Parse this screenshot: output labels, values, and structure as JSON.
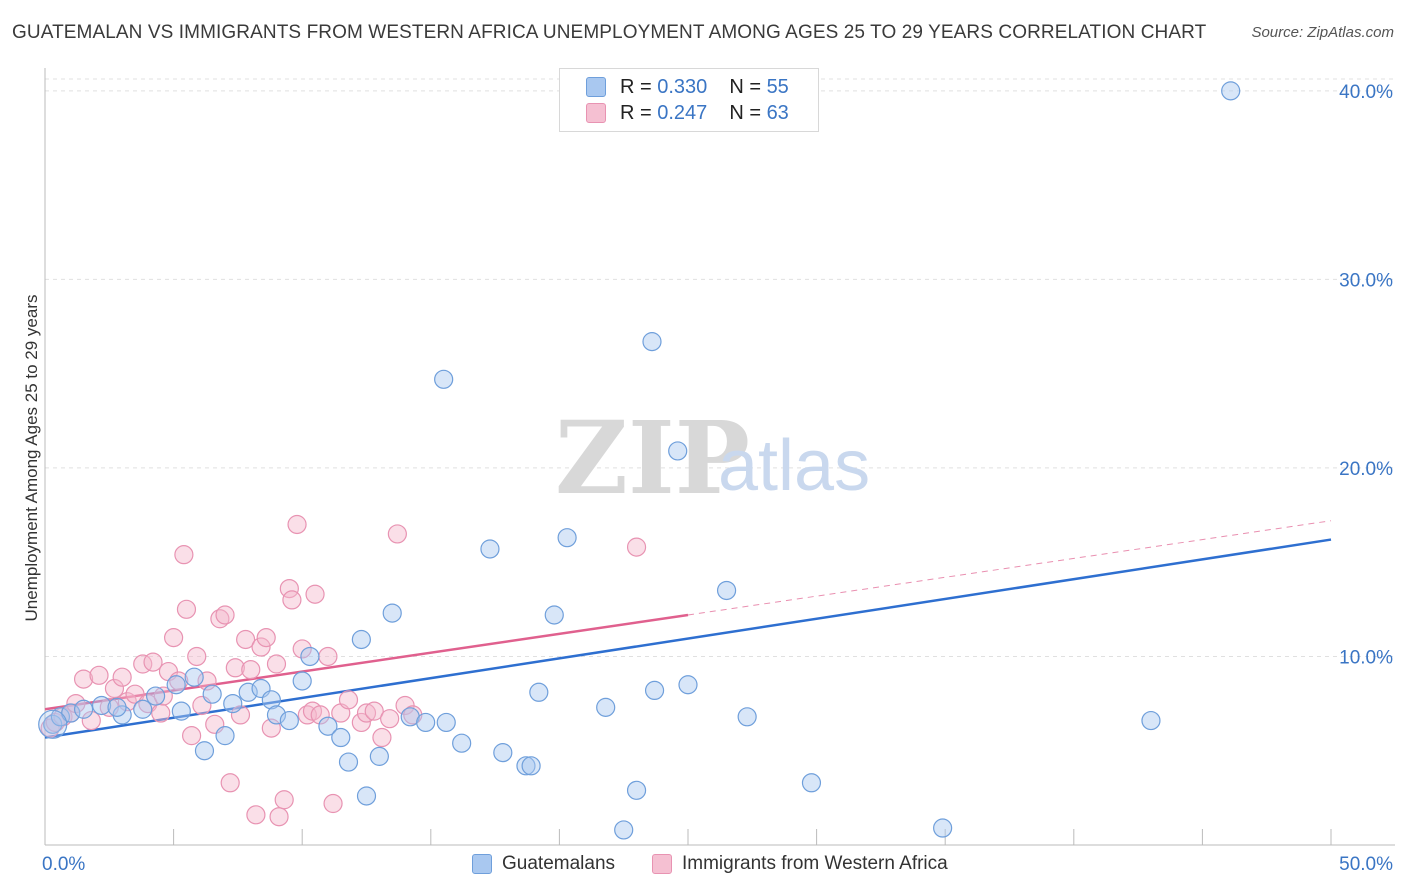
{
  "title": "GUATEMALAN VS IMMIGRANTS FROM WESTERN AFRICA UNEMPLOYMENT AMONG AGES 25 TO 29 YEARS CORRELATION CHART",
  "source": "Source: ZipAtlas.com",
  "watermark": {
    "part1": "ZIP",
    "part2": "atlas"
  },
  "legend": {
    "rows": [
      {
        "r_label": "R = ",
        "r_value": "0.330",
        "n_label": "N = ",
        "n_value": "55"
      },
      {
        "r_label": "R = ",
        "r_value": "0.247",
        "n_label": "N = ",
        "n_value": "63"
      }
    ]
  },
  "bottom_legend": [
    "Guatemalans",
    "Immigrants from Western Africa"
  ],
  "colors": {
    "blue": "#3a75c4",
    "blue_fill": "#a9c8f0",
    "blue_line": "#2e6fd0",
    "pink": "#e0709a",
    "pink_fill": "#f5b8cc",
    "pink_line": "#e0608e",
    "grid": "#e0e0e0",
    "axis_text": "#3a75c4"
  },
  "chart_data": {
    "type": "scatter",
    "title": "GUATEMALAN VS IMMIGRANTS FROM WESTERN AFRICA UNEMPLOYMENT AMONG AGES 25 TO 29 YEARS CORRELATION CHART",
    "xlabel": "",
    "ylabel": "Unemployment Among Ages 25 to 29 years",
    "xlim": [
      0,
      50
    ],
    "ylim": [
      0,
      41
    ],
    "x_tick_labels": [
      "0.0%",
      "50.0%"
    ],
    "y_ticks": [
      10,
      20,
      30,
      40
    ],
    "y_tick_labels": [
      "10.0%",
      "20.0%",
      "30.0%",
      "40.0%"
    ],
    "grid": true,
    "legend_position": "top-center",
    "series": [
      {
        "name": "Guatemalans",
        "r": 0.33,
        "n": 55,
        "trend": {
          "x": [
            0,
            50
          ],
          "y": [
            5.7,
            16.2
          ],
          "dashed_extension": false
        },
        "points": [
          [
            0.3,
            6.4
          ],
          [
            0.6,
            6.8
          ],
          [
            1.0,
            7.0
          ],
          [
            1.5,
            7.2
          ],
          [
            2.2,
            7.4
          ],
          [
            3.0,
            6.9
          ],
          [
            2.8,
            7.3
          ],
          [
            3.8,
            7.2
          ],
          [
            4.3,
            7.9
          ],
          [
            5.1,
            8.5
          ],
          [
            5.3,
            7.1
          ],
          [
            5.8,
            8.9
          ],
          [
            6.2,
            5.0
          ],
          [
            6.5,
            8.0
          ],
          [
            7.0,
            5.8
          ],
          [
            7.3,
            7.5
          ],
          [
            7.9,
            8.1
          ],
          [
            8.4,
            8.3
          ],
          [
            8.8,
            7.7
          ],
          [
            9.0,
            6.9
          ],
          [
            9.5,
            6.6
          ],
          [
            10.0,
            8.7
          ],
          [
            10.3,
            10.0
          ],
          [
            11.0,
            6.3
          ],
          [
            11.5,
            5.7
          ],
          [
            11.8,
            4.4
          ],
          [
            12.3,
            10.9
          ],
          [
            12.5,
            2.6
          ],
          [
            13.0,
            4.7
          ],
          [
            13.5,
            12.3
          ],
          [
            14.2,
            6.8
          ],
          [
            14.8,
            6.5
          ],
          [
            15.5,
            24.7
          ],
          [
            15.6,
            6.5
          ],
          [
            16.2,
            5.4
          ],
          [
            17.3,
            15.7
          ],
          [
            17.8,
            4.9
          ],
          [
            18.7,
            4.2
          ],
          [
            18.9,
            4.2
          ],
          [
            19.2,
            8.1
          ],
          [
            19.8,
            12.2
          ],
          [
            20.3,
            16.3
          ],
          [
            21.8,
            7.3
          ],
          [
            22.5,
            0.8
          ],
          [
            23.0,
            2.9
          ],
          [
            23.6,
            26.7
          ],
          [
            23.7,
            8.2
          ],
          [
            24.6,
            20.9
          ],
          [
            25.0,
            8.5
          ],
          [
            26.5,
            13.5
          ],
          [
            27.3,
            6.8
          ],
          [
            29.8,
            3.3
          ],
          [
            34.9,
            0.9
          ],
          [
            43.0,
            6.6
          ],
          [
            46.1,
            40.0
          ]
        ]
      },
      {
        "name": "Immigrants from Western Africa",
        "r": 0.247,
        "n": 63,
        "trend": {
          "x": [
            0,
            25,
            50
          ],
          "y": [
            7.2,
            12.2,
            17.2
          ],
          "solid_until_x": 25,
          "dashed_after": true
        },
        "points": [
          [
            0.2,
            6.2
          ],
          [
            0.4,
            6.5
          ],
          [
            0.7,
            6.8
          ],
          [
            1.0,
            7.0
          ],
          [
            1.2,
            7.5
          ],
          [
            1.5,
            8.8
          ],
          [
            1.8,
            6.6
          ],
          [
            2.1,
            9.0
          ],
          [
            2.5,
            7.3
          ],
          [
            2.7,
            8.3
          ],
          [
            3.0,
            8.9
          ],
          [
            3.2,
            7.6
          ],
          [
            3.5,
            8.0
          ],
          [
            3.8,
            9.6
          ],
          [
            4.0,
            7.5
          ],
          [
            4.2,
            9.7
          ],
          [
            4.5,
            7.0
          ],
          [
            4.6,
            7.9
          ],
          [
            4.8,
            9.2
          ],
          [
            5.0,
            11.0
          ],
          [
            5.2,
            8.7
          ],
          [
            5.4,
            15.4
          ],
          [
            5.5,
            12.5
          ],
          [
            5.7,
            5.8
          ],
          [
            5.9,
            10.0
          ],
          [
            6.1,
            7.4
          ],
          [
            6.3,
            8.7
          ],
          [
            6.6,
            6.4
          ],
          [
            6.8,
            12.0
          ],
          [
            7.0,
            12.2
          ],
          [
            7.2,
            3.3
          ],
          [
            7.4,
            9.4
          ],
          [
            7.6,
            6.9
          ],
          [
            7.8,
            10.9
          ],
          [
            8.0,
            9.3
          ],
          [
            8.2,
            1.6
          ],
          [
            8.4,
            10.5
          ],
          [
            8.6,
            11.0
          ],
          [
            8.8,
            6.2
          ],
          [
            9.0,
            9.6
          ],
          [
            9.1,
            1.5
          ],
          [
            9.3,
            2.4
          ],
          [
            9.5,
            13.6
          ],
          [
            9.6,
            13.0
          ],
          [
            9.8,
            17.0
          ],
          [
            10.0,
            10.4
          ],
          [
            10.2,
            6.9
          ],
          [
            10.4,
            7.1
          ],
          [
            10.5,
            13.3
          ],
          [
            10.7,
            6.9
          ],
          [
            11.0,
            10.0
          ],
          [
            11.2,
            2.2
          ],
          [
            11.5,
            7.0
          ],
          [
            11.8,
            7.7
          ],
          [
            12.3,
            6.5
          ],
          [
            12.5,
            7.0
          ],
          [
            12.8,
            7.1
          ],
          [
            13.1,
            5.7
          ],
          [
            13.4,
            6.7
          ],
          [
            13.7,
            16.5
          ],
          [
            14.0,
            7.4
          ],
          [
            14.3,
            6.9
          ],
          [
            23.0,
            15.8
          ]
        ]
      }
    ]
  }
}
